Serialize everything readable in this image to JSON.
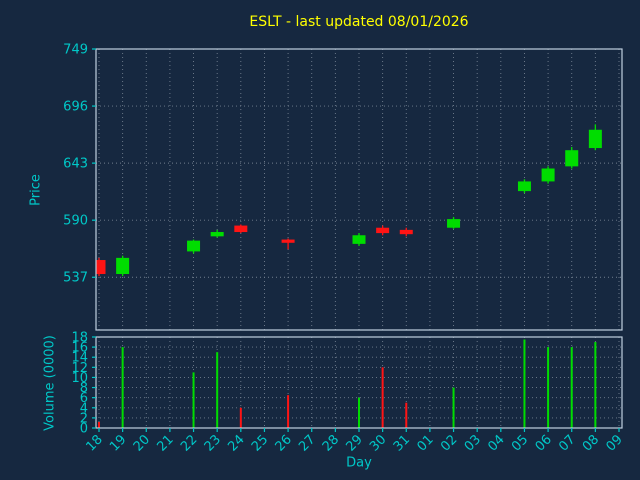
{
  "colors": {
    "background": "#162840",
    "title": "#ffff00",
    "tick": "#00c8c8",
    "spine": "#c0d0e0",
    "grid": "#9aa5b1",
    "up": "#00dd00",
    "down": "#ff1414"
  },
  "chart_data": {
    "type": "candlestick+volume",
    "title": "ESLT - last updated 08/01/2026",
    "xlabel": "Day",
    "ylabel_price": "Price",
    "ylabel_volume": "Volume (0000)",
    "x_ticklabels": [
      "18",
      "19",
      "20",
      "21",
      "22",
      "23",
      "24",
      "25",
      "26",
      "27",
      "28",
      "29",
      "30",
      "31",
      "01",
      "02",
      "03",
      "04",
      "05",
      "06",
      "07",
      "08",
      "09"
    ],
    "price_ticks": [
      537,
      590,
      643,
      696,
      749
    ],
    "price_ylim": [
      488,
      749
    ],
    "volume_ticks": [
      0,
      2,
      4,
      6,
      8,
      10,
      12,
      14,
      16,
      18
    ],
    "volume_ylim": [
      0,
      18
    ],
    "grid": "dotted",
    "candles": [
      {
        "day": "18",
        "x": 0,
        "open": 553,
        "high": 555,
        "low": 538,
        "close": 540,
        "volume": 1.2
      },
      {
        "day": "19",
        "x": 1,
        "open": 540,
        "high": 557,
        "low": 538,
        "close": 555,
        "volume": 16.0
      },
      {
        "day": "22",
        "x": 4,
        "open": 561,
        "high": 572,
        "low": 559,
        "close": 571,
        "volume": 11.0
      },
      {
        "day": "23",
        "x": 5,
        "open": 575,
        "high": 581,
        "low": 574,
        "close": 579,
        "volume": 15.0
      },
      {
        "day": "24",
        "x": 6,
        "open": 585,
        "high": 586,
        "low": 578,
        "close": 579,
        "volume": 4.0
      },
      {
        "day": "26",
        "x": 8,
        "open": 572,
        "high": 573,
        "low": 563,
        "close": 569,
        "volume": 6.5
      },
      {
        "day": "29",
        "x": 11,
        "open": 568,
        "high": 578,
        "low": 566,
        "close": 576,
        "volume": 6.0
      },
      {
        "day": "30",
        "x": 12,
        "open": 583,
        "high": 585,
        "low": 576,
        "close": 578,
        "volume": 12.0
      },
      {
        "day": "31",
        "x": 13,
        "open": 581,
        "high": 583,
        "low": 575,
        "close": 577,
        "volume": 5.0
      },
      {
        "day": "02",
        "x": 15,
        "open": 583,
        "high": 593,
        "low": 582,
        "close": 591,
        "volume": 8.0
      },
      {
        "day": "05",
        "x": 18,
        "open": 617,
        "high": 628,
        "low": 615,
        "close": 626,
        "volume": 17.5
      },
      {
        "day": "06",
        "x": 19,
        "open": 626,
        "high": 640,
        "low": 624,
        "close": 638,
        "volume": 16.0
      },
      {
        "day": "07",
        "x": 20,
        "open": 640,
        "high": 658,
        "low": 638,
        "close": 655,
        "volume": 16.0
      },
      {
        "day": "08",
        "x": 21,
        "open": 657,
        "high": 679,
        "low": 655,
        "close": 674,
        "volume": 17.0
      }
    ]
  }
}
